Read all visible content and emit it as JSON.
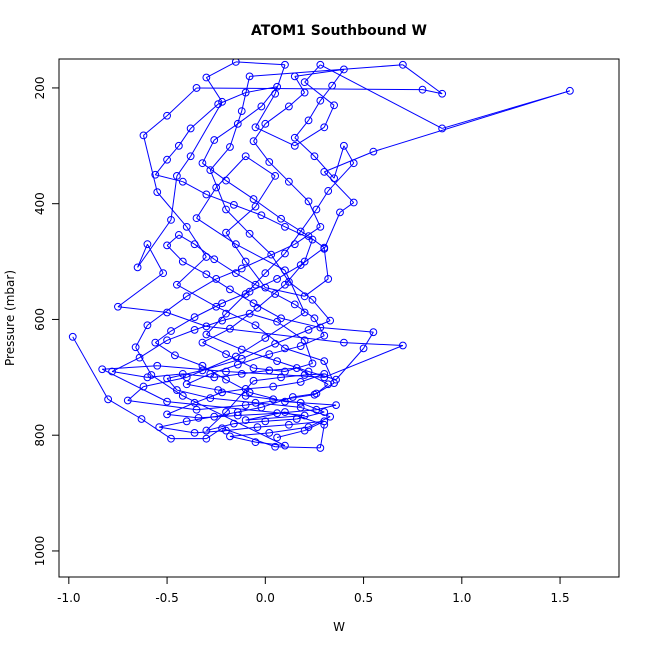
{
  "chart_data": {
    "type": "scatter",
    "title": "ATOM1 Southbound W",
    "xlabel": "W",
    "ylabel": "Pressure (mbar)",
    "xlim": [
      -1.05,
      1.8
    ],
    "ylim": [
      1045,
      150
    ],
    "y_axis_inverted": true,
    "x_ticks": [
      -1.0,
      -0.5,
      0.0,
      0.5,
      1.0,
      1.5
    ],
    "x_tick_labels": [
      "-1.0",
      "-0.5",
      "0.0",
      "0.5",
      "1.0",
      "1.5"
    ],
    "y_ticks": [
      200,
      400,
      600,
      800,
      1000
    ],
    "y_tick_labels": [
      "200",
      "400",
      "600",
      "800",
      "1000"
    ],
    "grid": false,
    "series": [
      {
        "color": "#0000ff",
        "marker": "open-circle",
        "line": true,
        "points": [
          [
            -0.98,
            630
          ],
          [
            -0.8,
            738
          ],
          [
            -0.63,
            772
          ],
          [
            -0.48,
            806
          ],
          [
            -0.3,
            806
          ],
          [
            -0.22,
            788
          ],
          [
            0.05,
            820
          ],
          [
            0.28,
            822
          ],
          [
            0.3,
            782
          ],
          [
            0.1,
            760
          ],
          [
            -0.1,
            774
          ],
          [
            0.2,
            766
          ],
          [
            -0.5,
            742
          ],
          [
            -0.83,
            686
          ],
          [
            -0.55,
            680
          ],
          [
            -0.2,
            690
          ],
          [
            0.3,
            700
          ],
          [
            0.7,
            645
          ],
          [
            0.4,
            640
          ],
          [
            -0.3,
            612
          ],
          [
            -0.5,
            588
          ],
          [
            -0.75,
            578
          ],
          [
            -0.52,
            520
          ],
          [
            -0.6,
            470
          ],
          [
            -0.65,
            510
          ],
          [
            -0.48,
            428
          ],
          [
            -0.45,
            352
          ],
          [
            -0.38,
            318
          ],
          [
            -0.22,
            224
          ],
          [
            -0.3,
            182
          ],
          [
            -0.15,
            155
          ],
          [
            0.1,
            160
          ],
          [
            0.05,
            210
          ],
          [
            -0.05,
            268
          ],
          [
            0.15,
            300
          ],
          [
            0.3,
            268
          ],
          [
            0.35,
            230
          ],
          [
            0.2,
            190
          ],
          [
            0.28,
            160
          ],
          [
            0.9,
            270
          ],
          [
            1.55,
            205
          ],
          [
            0.55,
            310
          ],
          [
            0.3,
            345
          ],
          [
            0.45,
            398
          ],
          [
            0.38,
            415
          ],
          [
            0.3,
            478
          ],
          [
            0.32,
            530
          ],
          [
            0.2,
            560
          ],
          [
            0.0,
            545
          ],
          [
            -0.1,
            500
          ],
          [
            -0.2,
            450
          ],
          [
            -0.05,
            405
          ],
          [
            0.05,
            352
          ],
          [
            -0.1,
            318
          ],
          [
            -0.25,
            372
          ],
          [
            -0.35,
            425
          ],
          [
            -0.15,
            470
          ],
          [
            0.1,
            515
          ],
          [
            0.2,
            588
          ],
          [
            0.0,
            632
          ],
          [
            -0.15,
            664
          ],
          [
            -0.4,
            700
          ],
          [
            -0.62,
            716
          ],
          [
            -0.7,
            740
          ],
          [
            -0.35,
            756
          ],
          [
            -0.1,
            748
          ],
          [
            0.25,
            730
          ],
          [
            0.35,
            710
          ],
          [
            0.3,
            672
          ],
          [
            0.1,
            650
          ],
          [
            -0.05,
            610
          ],
          [
            -0.25,
            578
          ],
          [
            -0.45,
            540
          ],
          [
            -0.3,
            492
          ],
          [
            -0.4,
            440
          ],
          [
            -0.55,
            380
          ],
          [
            -0.62,
            282
          ],
          [
            -0.5,
            248
          ],
          [
            -0.35,
            200
          ],
          [
            0.8,
            203
          ],
          [
            0.9,
            210
          ],
          [
            0.7,
            160
          ],
          [
            -0.08,
            180
          ],
          [
            -0.12,
            240
          ],
          [
            -0.18,
            302
          ],
          [
            -0.28,
            342
          ],
          [
            -0.2,
            410
          ],
          [
            -0.08,
            452
          ],
          [
            0.03,
            488
          ],
          [
            0.12,
            535
          ],
          [
            0.24,
            566
          ],
          [
            0.33,
            602
          ],
          [
            0.22,
            618
          ],
          [
            0.05,
            642
          ],
          [
            -0.12,
            668
          ],
          [
            -0.32,
            688
          ],
          [
            -0.5,
            702
          ],
          [
            -0.45,
            722
          ],
          [
            -0.28,
            736
          ],
          [
            -0.05,
            744
          ],
          [
            0.18,
            752
          ],
          [
            0.33,
            768
          ],
          [
            0.22,
            786
          ],
          [
            0.02,
            796
          ],
          [
            -0.18,
            802
          ],
          [
            -0.05,
            812
          ],
          [
            0.1,
            818
          ],
          [
            -0.42,
            732
          ],
          [
            -0.58,
            696
          ],
          [
            -0.66,
            648
          ],
          [
            -0.6,
            610
          ],
          [
            -0.4,
            560
          ],
          [
            -0.25,
            530
          ],
          [
            -0.12,
            512
          ],
          [
            0.15,
            470
          ],
          [
            0.28,
            440
          ],
          [
            0.22,
            396
          ],
          [
            0.12,
            362
          ],
          [
            0.02,
            328
          ],
          [
            -0.06,
            292
          ],
          [
            0.0,
            262
          ],
          [
            0.12,
            232
          ],
          [
            0.2,
            208
          ],
          [
            0.15,
            180
          ],
          [
            0.4,
            168
          ],
          [
            0.34,
            196
          ],
          [
            0.28,
            222
          ],
          [
            0.22,
            256
          ],
          [
            0.15,
            286
          ],
          [
            0.25,
            318
          ],
          [
            0.35,
            356
          ],
          [
            0.4,
            300
          ],
          [
            0.45,
            330
          ],
          [
            0.32,
            378
          ],
          [
            0.26,
            410
          ],
          [
            0.18,
            448
          ],
          [
            0.1,
            486
          ],
          [
            0.0,
            520
          ],
          [
            -0.1,
            556
          ],
          [
            -0.2,
            590
          ],
          [
            -0.3,
            626
          ],
          [
            -0.12,
            652
          ],
          [
            0.06,
            672
          ],
          [
            0.22,
            690
          ],
          [
            0.36,
            704
          ],
          [
            0.5,
            650
          ],
          [
            0.55,
            622
          ],
          [
            0.28,
            614
          ],
          [
            0.08,
            598
          ],
          [
            -0.06,
            572
          ],
          [
            -0.18,
            548
          ],
          [
            -0.3,
            522
          ],
          [
            -0.42,
            500
          ],
          [
            -0.5,
            472
          ],
          [
            -0.44,
            454
          ],
          [
            -0.36,
            470
          ],
          [
            -0.26,
            496
          ],
          [
            -0.15,
            520
          ],
          [
            -0.05,
            540
          ],
          [
            0.05,
            556
          ],
          [
            0.15,
            574
          ],
          [
            0.25,
            598
          ],
          [
            0.3,
            628
          ],
          [
            0.18,
            646
          ],
          [
            0.02,
            660
          ],
          [
            -0.14,
            678
          ],
          [
            -0.28,
            694
          ],
          [
            -0.4,
            712
          ],
          [
            -0.24,
            722
          ],
          [
            -0.1,
            732
          ],
          [
            0.04,
            738
          ],
          [
            0.18,
            744
          ],
          [
            0.3,
            760
          ],
          [
            0.16,
            772
          ],
          [
            0.0,
            776
          ],
          [
            -0.16,
            780
          ],
          [
            -0.3,
            792
          ],
          [
            -0.2,
            760
          ],
          [
            -0.06,
            706
          ],
          [
            0.08,
            700
          ],
          [
            0.2,
            696
          ],
          [
            0.3,
            694
          ],
          [
            0.18,
            708
          ],
          [
            0.04,
            716
          ],
          [
            -0.1,
            720
          ],
          [
            -0.22,
            726
          ],
          [
            -0.36,
            744
          ],
          [
            -0.5,
            764
          ],
          [
            -0.34,
            770
          ],
          [
            -0.14,
            766
          ],
          [
            0.06,
            762
          ],
          [
            0.26,
            756
          ],
          [
            0.36,
            748
          ],
          [
            0.1,
            742
          ],
          [
            -0.08,
            726
          ],
          [
            -0.2,
            704
          ],
          [
            -0.32,
            680
          ],
          [
            -0.46,
            662
          ],
          [
            -0.56,
            640
          ],
          [
            -0.48,
            620
          ],
          [
            -0.36,
            596
          ],
          [
            -0.22,
            572
          ],
          [
            -0.08,
            552
          ],
          [
            0.06,
            530
          ],
          [
            0.18,
            506
          ],
          [
            0.3,
            476
          ],
          [
            0.22,
            456
          ],
          [
            0.08,
            426
          ],
          [
            -0.06,
            392
          ],
          [
            -0.2,
            360
          ],
          [
            -0.32,
            330
          ],
          [
            -0.26,
            290
          ],
          [
            -0.14,
            262
          ],
          [
            -0.02,
            232
          ],
          [
            0.06,
            198
          ],
          [
            -0.1,
            208
          ],
          [
            -0.24,
            228
          ],
          [
            -0.38,
            270
          ],
          [
            -0.44,
            300
          ],
          [
            -0.5,
            324
          ],
          [
            -0.56,
            350
          ],
          [
            -0.42,
            362
          ],
          [
            -0.3,
            384
          ],
          [
            -0.16,
            402
          ],
          [
            -0.02,
            420
          ],
          [
            0.1,
            440
          ],
          [
            0.24,
            462
          ],
          [
            0.2,
            500
          ],
          [
            0.1,
            540
          ],
          [
            -0.04,
            580
          ],
          [
            -0.18,
            616
          ],
          [
            -0.32,
            640
          ],
          [
            -0.2,
            660
          ],
          [
            -0.06,
            684
          ],
          [
            0.1,
            690
          ],
          [
            0.24,
            676
          ],
          [
            0.2,
            636
          ],
          [
            0.06,
            604
          ],
          [
            -0.08,
            590
          ],
          [
            -0.22,
            602
          ],
          [
            -0.36,
            618
          ],
          [
            -0.5,
            636
          ],
          [
            -0.64,
            666
          ],
          [
            -0.78,
            690
          ],
          [
            -0.6,
            700
          ],
          [
            -0.42,
            694
          ],
          [
            -0.26,
            700
          ],
          [
            -0.12,
            694
          ],
          [
            0.02,
            688
          ],
          [
            0.16,
            684
          ],
          [
            0.32,
            712
          ],
          [
            0.26,
            728
          ],
          [
            0.14,
            734
          ],
          [
            -0.02,
            752
          ],
          [
            -0.14,
            760
          ],
          [
            -0.26,
            768
          ],
          [
            -0.4,
            776
          ],
          [
            -0.54,
            786
          ],
          [
            -0.36,
            796
          ],
          [
            -0.2,
            792
          ],
          [
            -0.04,
            786
          ],
          [
            0.12,
            782
          ],
          [
            0.3,
            776
          ],
          [
            0.2,
            792
          ],
          [
            0.06,
            804
          ]
        ]
      }
    ]
  }
}
